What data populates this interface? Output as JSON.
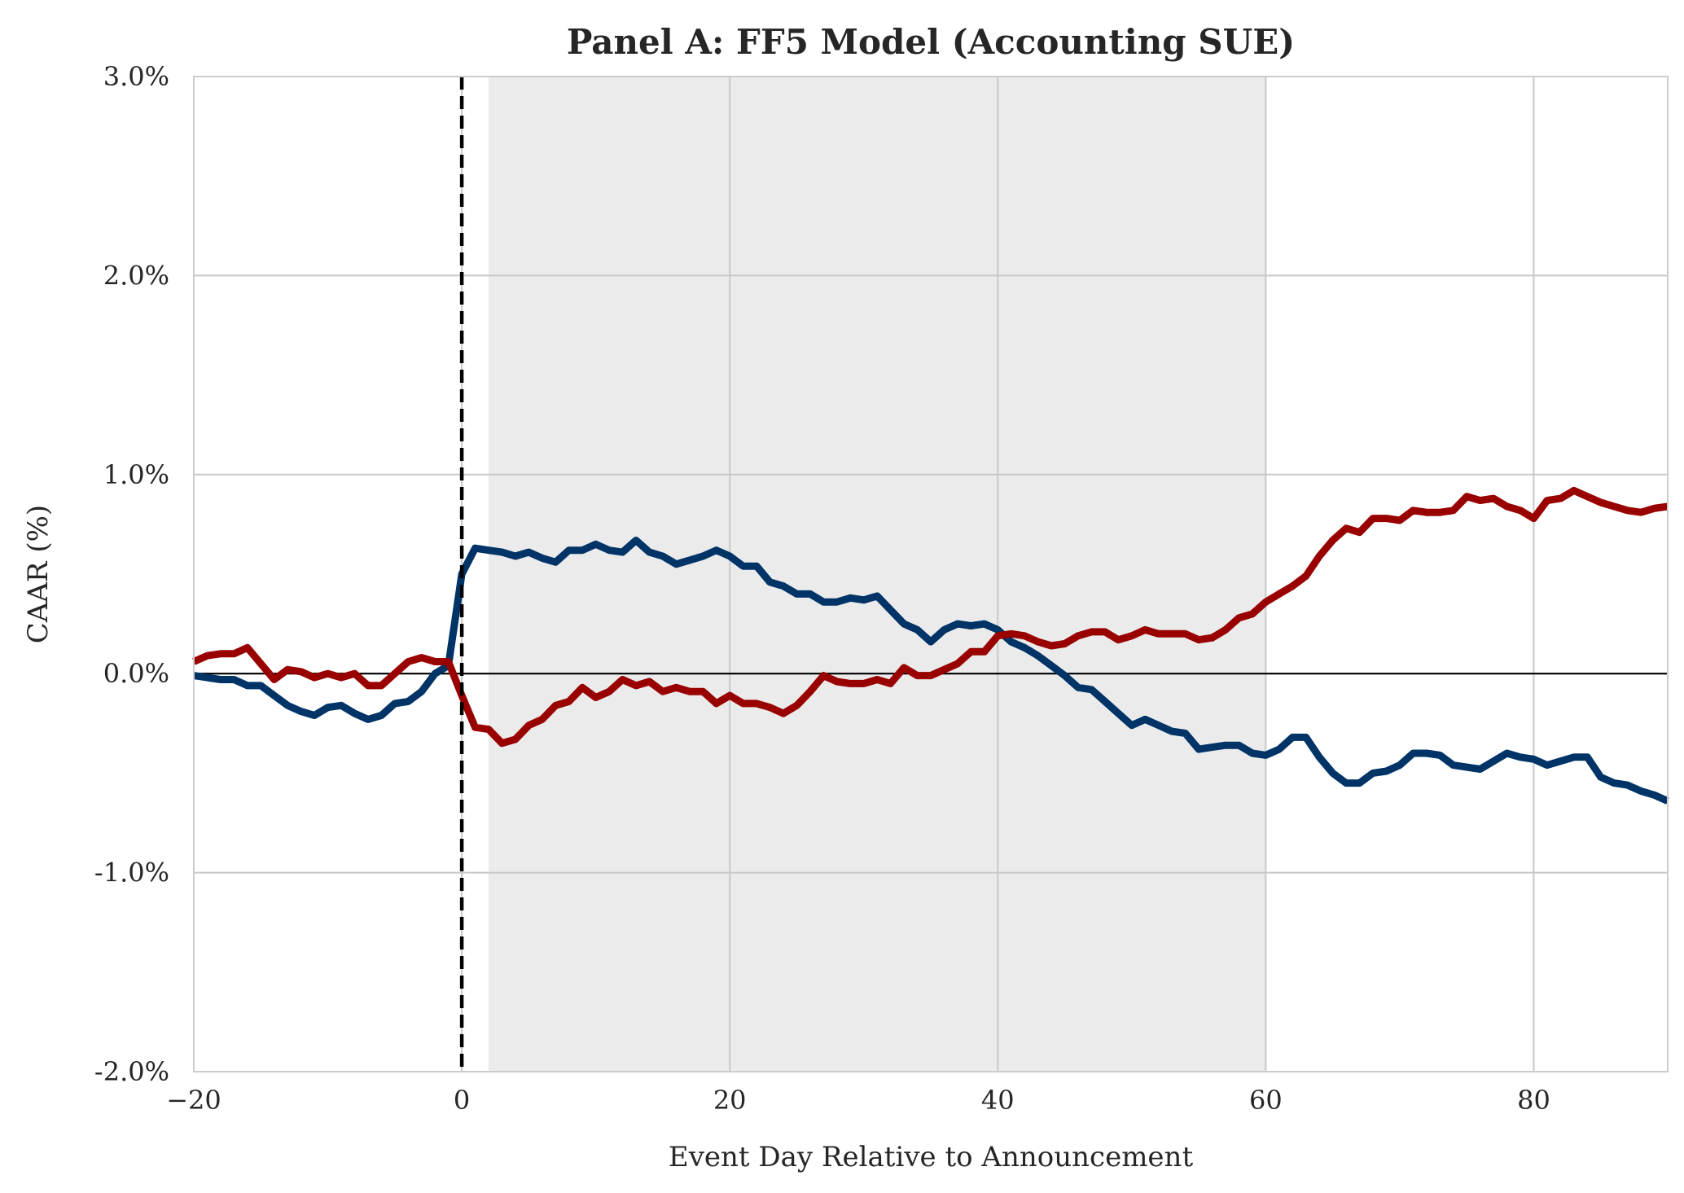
{
  "chart_data": {
    "type": "line",
    "title": "Panel A: FF5 Model (Accounting SUE)",
    "xlabel": "Event Day Relative to Announcement",
    "ylabel": "CAAR (%)",
    "xlim": [
      -20,
      90
    ],
    "ylim": [
      -2.0,
      3.0
    ],
    "x_ticks": [
      -20,
      0,
      20,
      40,
      60,
      80
    ],
    "x_tick_labels": [
      "−20",
      "0",
      "20",
      "40",
      "60",
      "80"
    ],
    "y_ticks": [
      -2.0,
      -1.0,
      0.0,
      1.0,
      2.0,
      3.0
    ],
    "y_tick_labels": [
      "-2.0%",
      "-1.0%",
      "0.0%",
      "1.0%",
      "2.0%",
      "3.0%"
    ],
    "grid": true,
    "shaded_region": {
      "x_start": 2,
      "x_end": 60,
      "color": "#ebebeb"
    },
    "event_line": {
      "x": 0,
      "style": "dashed",
      "color": "#000000"
    },
    "zero_line": {
      "y": 0,
      "color": "#000000"
    },
    "series": [
      {
        "color": "#003366",
        "x": [
          -20,
          -19,
          -18,
          -17,
          -16,
          -15,
          -14,
          -13,
          -12,
          -11,
          -10,
          -9,
          -8,
          -7,
          -6,
          -5,
          -4,
          -3,
          -2,
          -1,
          0,
          1,
          2,
          3,
          4,
          5,
          6,
          7,
          8,
          9,
          10,
          11,
          12,
          13,
          14,
          15,
          16,
          17,
          18,
          19,
          20,
          21,
          22,
          23,
          24,
          25,
          26,
          27,
          28,
          29,
          30,
          31,
          32,
          33,
          34,
          35,
          36,
          37,
          38,
          39,
          40,
          41,
          42,
          43,
          44,
          45,
          46,
          47,
          48,
          49,
          50,
          51,
          52,
          53,
          54,
          55,
          56,
          57,
          58,
          59,
          60,
          61,
          62,
          63,
          64,
          65,
          66,
          67,
          68,
          69,
          70,
          71,
          72,
          73,
          74,
          75,
          76,
          77,
          78,
          79,
          80,
          81,
          82,
          83,
          84,
          85,
          86,
          87,
          88,
          89,
          90
        ],
        "values": [
          -0.01,
          -0.02,
          -0.03,
          -0.03,
          -0.06,
          -0.06,
          -0.11,
          -0.16,
          -0.19,
          -0.21,
          -0.17,
          -0.16,
          -0.2,
          -0.23,
          -0.21,
          -0.15,
          -0.14,
          -0.09,
          0.0,
          0.04,
          0.5,
          0.63,
          0.62,
          0.61,
          0.59,
          0.61,
          0.58,
          0.56,
          0.62,
          0.62,
          0.65,
          0.62,
          0.61,
          0.67,
          0.61,
          0.59,
          0.55,
          0.57,
          0.59,
          0.62,
          0.59,
          0.54,
          0.54,
          0.46,
          0.44,
          0.4,
          0.4,
          0.36,
          0.36,
          0.38,
          0.37,
          0.39,
          0.32,
          0.25,
          0.22,
          0.16,
          0.22,
          0.25,
          0.24,
          0.25,
          0.22,
          0.16,
          0.13,
          0.09,
          0.04,
          -0.01,
          -0.07,
          -0.08,
          -0.14,
          -0.2,
          -0.26,
          -0.23,
          -0.26,
          -0.29,
          -0.3,
          -0.38,
          -0.37,
          -0.36,
          -0.36,
          -0.4,
          -0.41,
          -0.38,
          -0.32,
          -0.32,
          -0.42,
          -0.5,
          -0.55,
          -0.55,
          -0.5,
          -0.49,
          -0.46,
          -0.4,
          -0.4,
          -0.41,
          -0.46,
          -0.47,
          -0.48,
          -0.44,
          -0.4,
          -0.42,
          -0.43,
          -0.46,
          -0.44,
          -0.42,
          -0.42,
          -0.52,
          -0.55,
          -0.56,
          -0.59,
          -0.61,
          -0.64
        ]
      },
      {
        "color": "#990000",
        "x": [
          -20,
          -19,
          -18,
          -17,
          -16,
          -15,
          -14,
          -13,
          -12,
          -11,
          -10,
          -9,
          -8,
          -7,
          -6,
          -5,
          -4,
          -3,
          -2,
          -1,
          0,
          1,
          2,
          3,
          4,
          5,
          6,
          7,
          8,
          9,
          10,
          11,
          12,
          13,
          14,
          15,
          16,
          17,
          18,
          19,
          20,
          21,
          22,
          23,
          24,
          25,
          26,
          27,
          28,
          29,
          30,
          31,
          32,
          33,
          34,
          35,
          36,
          37,
          38,
          39,
          40,
          41,
          42,
          43,
          44,
          45,
          46,
          47,
          48,
          49,
          50,
          51,
          52,
          53,
          54,
          55,
          56,
          57,
          58,
          59,
          60,
          61,
          62,
          63,
          64,
          65,
          66,
          67,
          68,
          69,
          70,
          71,
          72,
          73,
          74,
          75,
          76,
          77,
          78,
          79,
          80,
          81,
          82,
          83,
          84,
          85,
          86,
          87,
          88,
          89,
          90
        ],
        "values": [
          0.06,
          0.09,
          0.1,
          0.1,
          0.13,
          0.05,
          -0.03,
          0.02,
          0.01,
          -0.02,
          0.0,
          -0.02,
          0.0,
          -0.06,
          -0.06,
          0.0,
          0.06,
          0.08,
          0.06,
          0.06,
          -0.11,
          -0.27,
          -0.28,
          -0.35,
          -0.33,
          -0.26,
          -0.23,
          -0.16,
          -0.14,
          -0.07,
          -0.12,
          -0.09,
          -0.03,
          -0.06,
          -0.04,
          -0.09,
          -0.07,
          -0.09,
          -0.09,
          -0.15,
          -0.11,
          -0.15,
          -0.15,
          -0.17,
          -0.2,
          -0.16,
          -0.09,
          -0.01,
          -0.04,
          -0.05,
          -0.05,
          -0.03,
          -0.05,
          0.03,
          -0.01,
          -0.01,
          0.02,
          0.05,
          0.11,
          0.11,
          0.19,
          0.2,
          0.19,
          0.16,
          0.14,
          0.15,
          0.19,
          0.21,
          0.21,
          0.17,
          0.19,
          0.22,
          0.2,
          0.2,
          0.2,
          0.17,
          0.18,
          0.22,
          0.28,
          0.3,
          0.36,
          0.4,
          0.44,
          0.49,
          0.59,
          0.67,
          0.73,
          0.71,
          0.78,
          0.78,
          0.77,
          0.82,
          0.81,
          0.81,
          0.82,
          0.89,
          0.87,
          0.88,
          0.84,
          0.82,
          0.78,
          0.87,
          0.88,
          0.92,
          0.89,
          0.86,
          0.84,
          0.82,
          0.81,
          0.83,
          0.84
        ]
      }
    ]
  }
}
